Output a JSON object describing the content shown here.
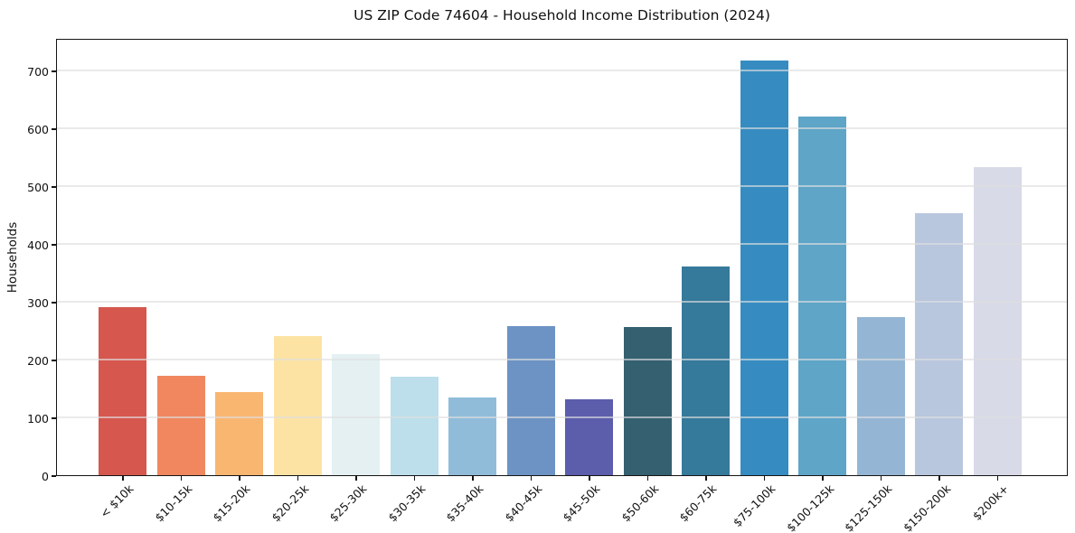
{
  "chart_data": {
    "type": "bar",
    "title": "US ZIP Code 74604 - Household Income Distribution (2024)",
    "xlabel": "",
    "ylabel": "Households",
    "categories": [
      "< $10k",
      "$10-15k",
      "$15-20k",
      "$20-25k",
      "$25-30k",
      "$30-35k",
      "$35-40k",
      "$40-45k",
      "$45-50k",
      "$50-60k",
      "$60-75k",
      "$75-100k",
      "$100-125k",
      "$125-150k",
      "$150-200k",
      "$200k+"
    ],
    "values": [
      290,
      172,
      144,
      240,
      210,
      171,
      135,
      258,
      131,
      256,
      361,
      717,
      620,
      273,
      453,
      533
    ],
    "bar_colors": [
      "#d6574e",
      "#f0875f",
      "#f9b671",
      "#fce3a4",
      "#e4f0f2",
      "#bcdfeb",
      "#90bcd9",
      "#6d93c4",
      "#5c5dab",
      "#35606f",
      "#35799b",
      "#368cc1",
      "#5ea5c8",
      "#94b6d4",
      "#b8c6de",
      "#d8dae8"
    ],
    "ylim": [
      0,
      756
    ],
    "yticks": [
      0,
      100,
      200,
      300,
      400,
      500,
      600,
      700
    ],
    "grid": "horizontal-only",
    "legend": "none",
    "background": "#ffffff",
    "spine_color": "#151515",
    "grid_color": "#dfdfdf"
  }
}
